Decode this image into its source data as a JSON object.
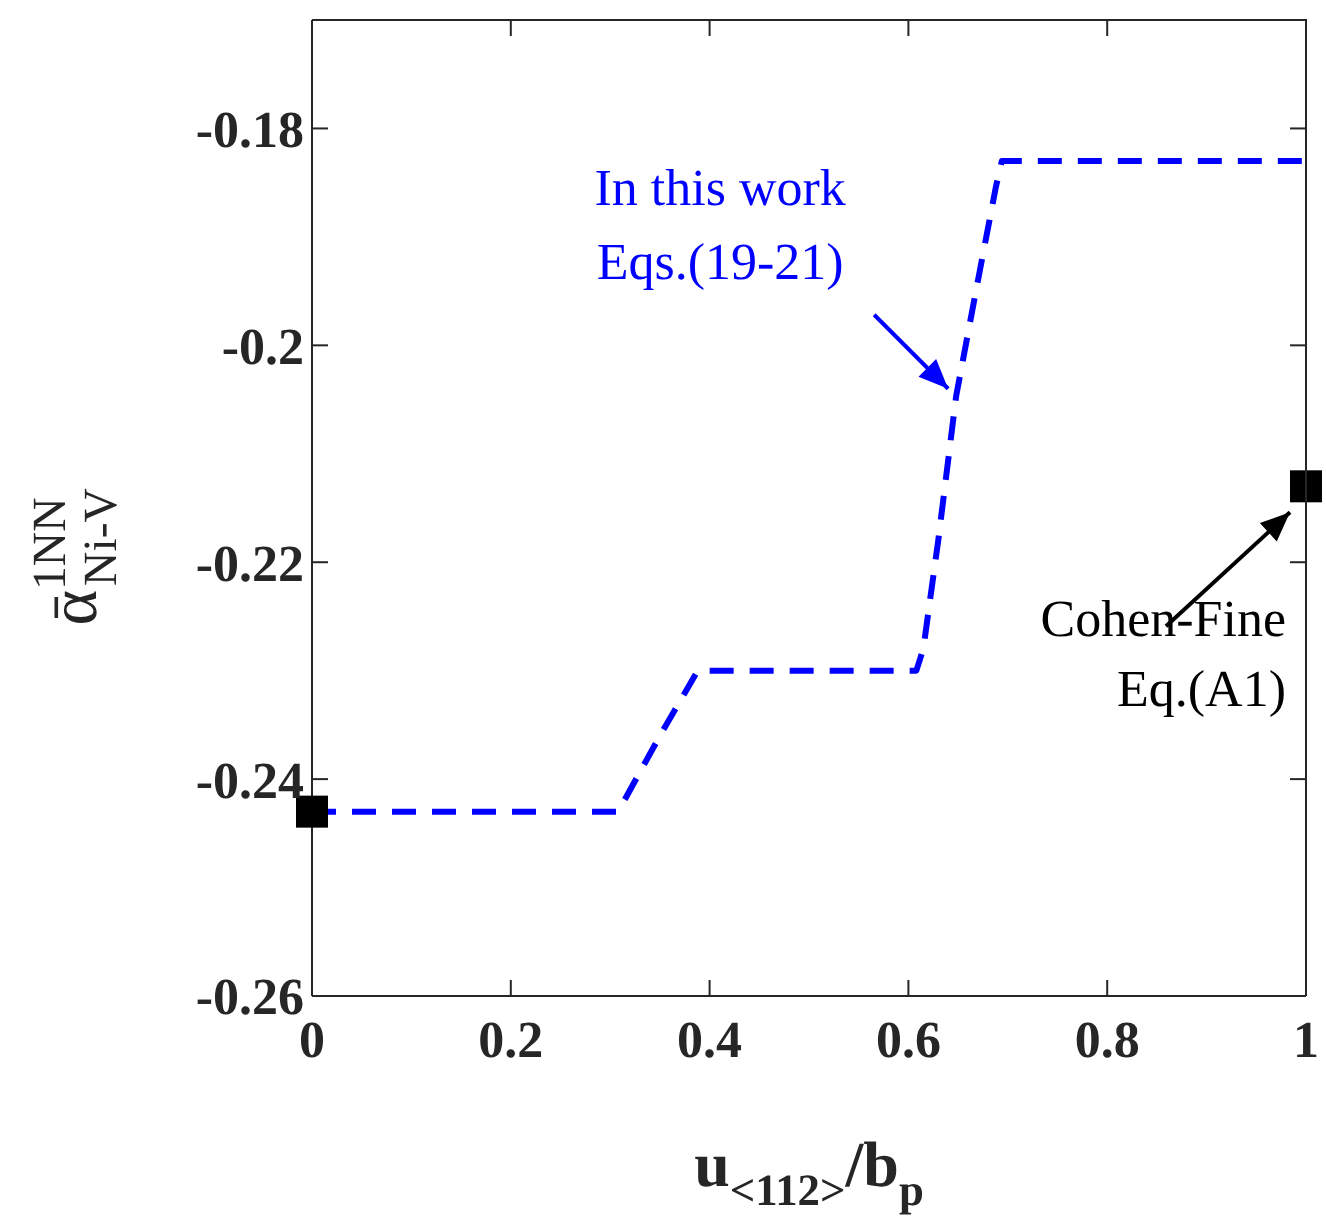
{
  "chart_data": {
    "type": "line",
    "xlabel": "u$_{<112>}$/b$_{p}$",
    "ylabel": "ᾱ$^{1NN}$$_{Ni-V}$",
    "series": [
      {
        "color": "#0000ff",
        "line_style": "dashed",
        "marker": "none",
        "x": [
          0,
          0.308,
          0.35,
          0.388,
          0.608,
          0.615,
          0.63,
          0.648,
          0.67,
          0.688,
          0.694,
          1
        ],
        "values": [
          -0.243,
          -0.243,
          -0.236,
          -0.23,
          -0.23,
          -0.228,
          -0.218,
          -0.2047,
          -0.194,
          -0.1854,
          -0.183,
          -0.183
        ]
      },
      {
        "type": "scatter",
        "color": "#000000",
        "marker": "square",
        "x": [
          0,
          1
        ],
        "values": [
          -0.243,
          -0.213
        ]
      }
    ],
    "annotations": [
      {
        "text": "In this work\nEqs.(19-21)",
        "x": 0.64,
        "y": -0.204
      },
      {
        "text": "Cohen-Fine\nEq.(A1)",
        "x": 1,
        "y": -0.213
      }
    ],
    "xlim": [
      0,
      1
    ],
    "xticks": [
      0,
      0.2,
      0.4,
      0.6,
      0.8,
      1
    ],
    "ylim": [
      -0.26,
      -0.17
    ],
    "yticks": [
      -0.26,
      -0.24,
      -0.22,
      -0.2,
      -0.18
    ],
    "grid": false,
    "legend": false
  }
}
